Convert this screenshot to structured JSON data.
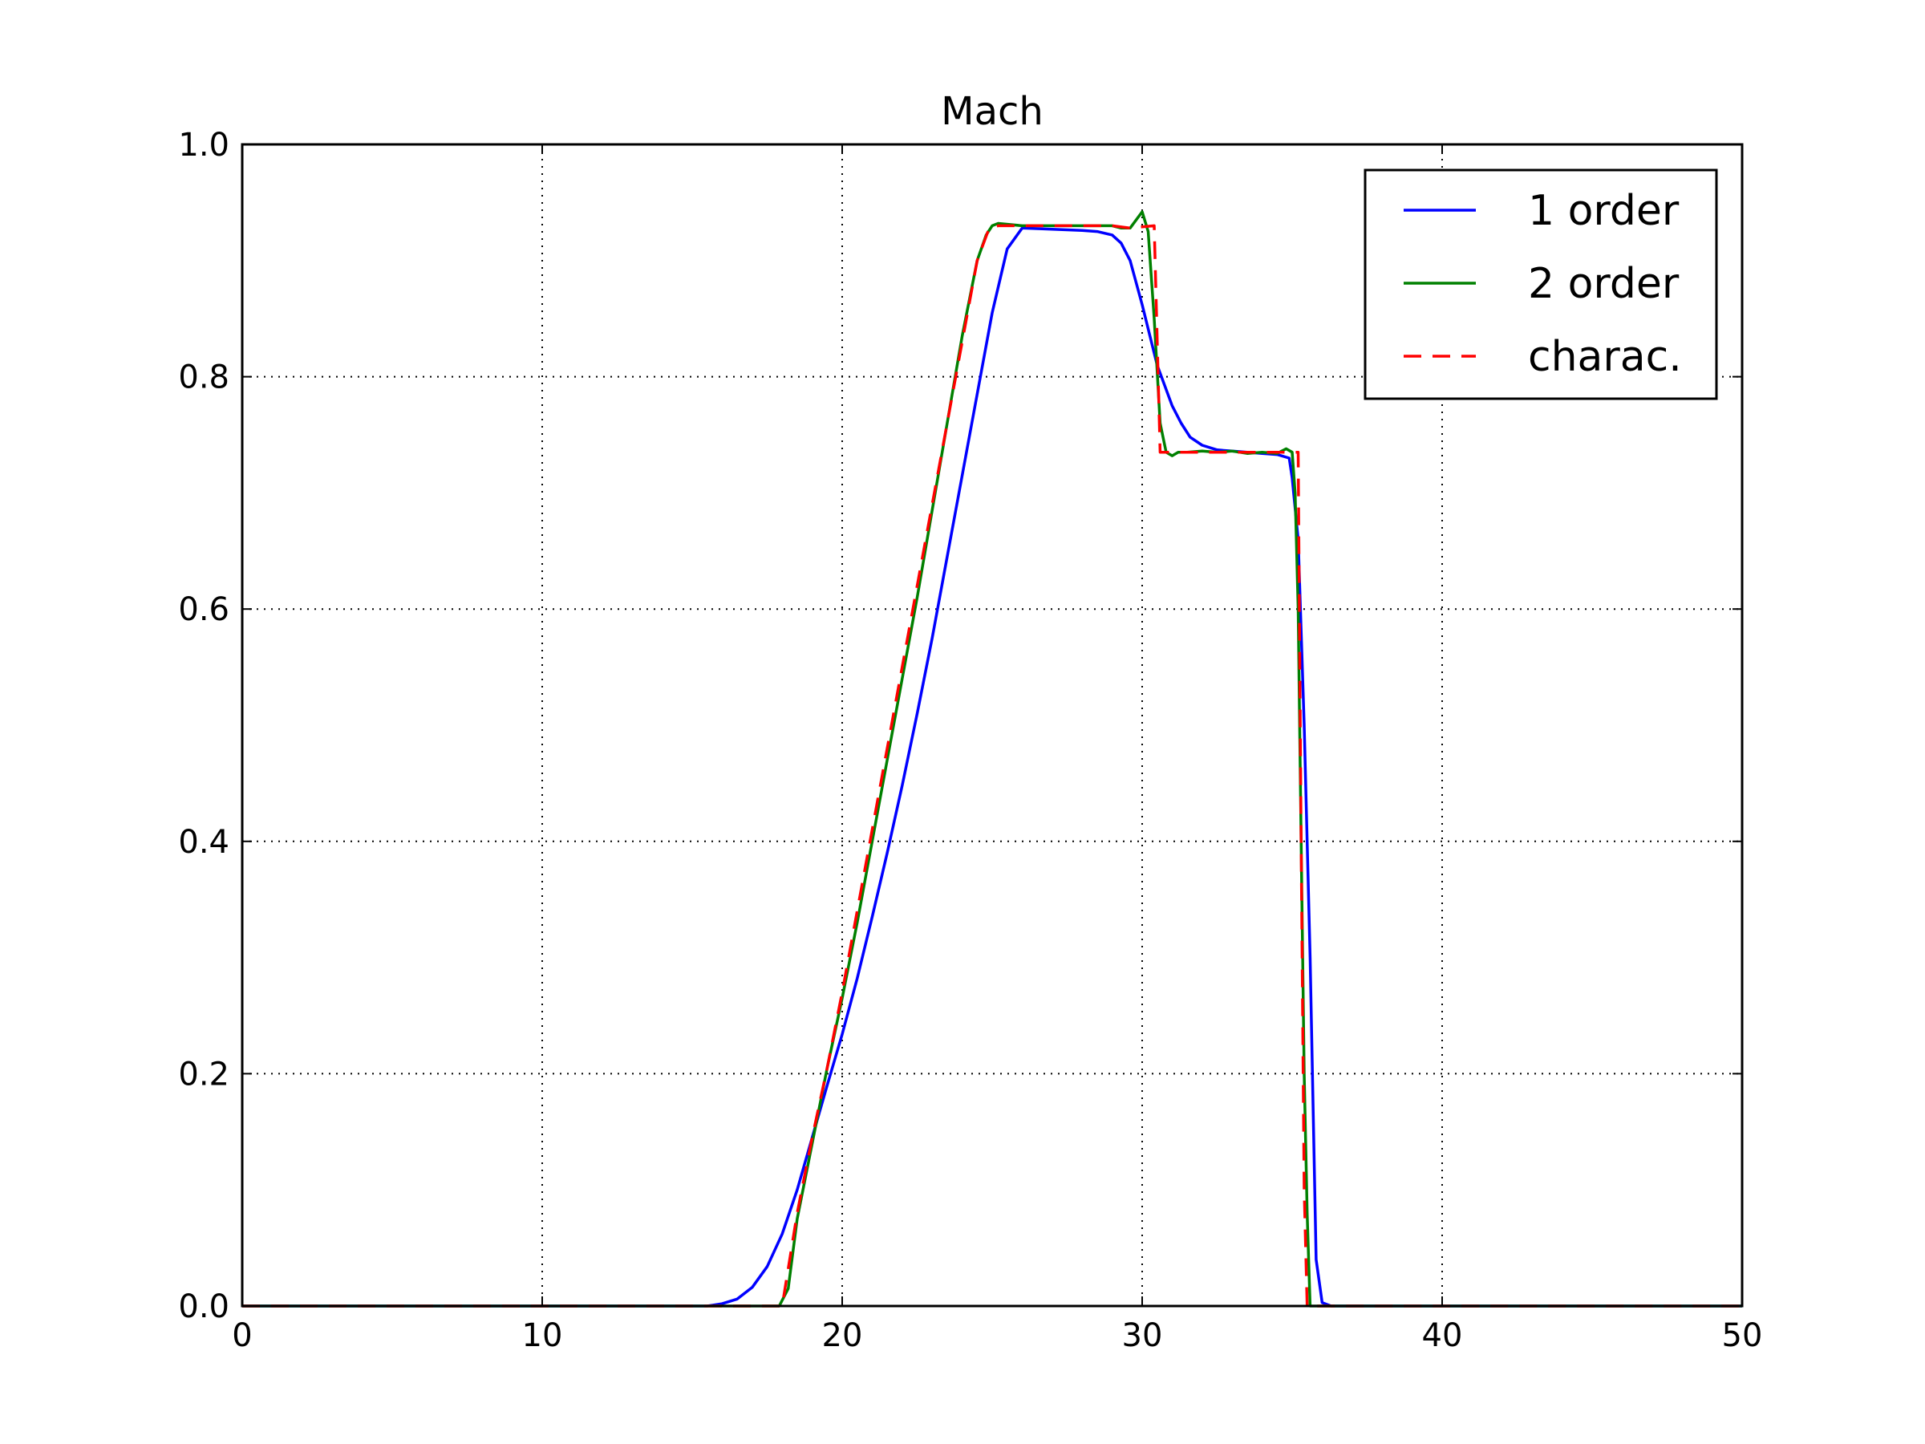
{
  "chart_data": {
    "type": "line",
    "title": "Mach",
    "xlabel": "",
    "ylabel": "",
    "xlim": [
      0,
      50
    ],
    "ylim": [
      0,
      1.0
    ],
    "x_ticks": [
      0,
      10,
      20,
      30,
      40,
      50
    ],
    "x_tick_labels": [
      "0",
      "10",
      "20",
      "30",
      "40",
      "50"
    ],
    "y_ticks": [
      0.0,
      0.2,
      0.4,
      0.6,
      0.8,
      1.0
    ],
    "y_tick_labels": [
      "0.0",
      "0.2",
      "0.4",
      "0.6",
      "0.8",
      "1.0"
    ],
    "grid": true,
    "legend_position": "top-right",
    "series": [
      {
        "name": "1 order",
        "color": "#0000ff",
        "style": "solid",
        "x": [
          0,
          15.5,
          16.0,
          16.5,
          17.0,
          17.5,
          18.0,
          18.5,
          19.0,
          19.5,
          20.0,
          20.5,
          21.0,
          21.5,
          22.0,
          22.5,
          23.0,
          23.5,
          24.0,
          24.5,
          25.0,
          25.5,
          26.0,
          27.0,
          28.0,
          28.5,
          29.0,
          29.3,
          29.6,
          30.0,
          30.5,
          31.0,
          31.3,
          31.6,
          32.0,
          32.5,
          33.0,
          33.5,
          34.0,
          34.5,
          34.9,
          35.0,
          35.2,
          35.4,
          35.6,
          35.8,
          36.0,
          36.3,
          50
        ],
        "y": [
          0,
          0,
          0.002,
          0.006,
          0.016,
          0.034,
          0.062,
          0.1,
          0.145,
          0.19,
          0.234,
          0.282,
          0.335,
          0.39,
          0.448,
          0.51,
          0.575,
          0.645,
          0.715,
          0.785,
          0.855,
          0.91,
          0.928,
          0.927,
          0.926,
          0.925,
          0.922,
          0.915,
          0.9,
          0.862,
          0.81,
          0.775,
          0.76,
          0.748,
          0.741,
          0.737,
          0.736,
          0.735,
          0.734,
          0.733,
          0.73,
          0.713,
          0.66,
          0.5,
          0.3,
          0.04,
          0.003,
          0,
          0
        ]
      },
      {
        "name": "2 order",
        "color": "#008000",
        "style": "solid",
        "x": [
          0,
          17.9,
          18.2,
          18.5,
          19.0,
          19.5,
          20.0,
          20.5,
          21.0,
          21.5,
          22.0,
          22.5,
          23.0,
          23.5,
          24.0,
          24.5,
          24.8,
          25.0,
          25.2,
          26.0,
          27.0,
          28.0,
          29.0,
          29.3,
          29.6,
          30.0,
          30.2,
          30.4,
          30.6,
          30.8,
          31.0,
          31.2,
          31.5,
          32.0,
          32.5,
          33.0,
          33.5,
          34.0,
          34.5,
          34.8,
          35.0,
          35.1,
          35.2,
          35.3,
          35.4,
          35.5,
          35.6,
          50
        ],
        "y": [
          0,
          0,
          0.015,
          0.075,
          0.14,
          0.205,
          0.265,
          0.33,
          0.4,
          0.47,
          0.54,
          0.61,
          0.685,
          0.76,
          0.835,
          0.9,
          0.922,
          0.93,
          0.932,
          0.93,
          0.93,
          0.93,
          0.93,
          0.928,
          0.928,
          0.942,
          0.925,
          0.85,
          0.76,
          0.735,
          0.732,
          0.735,
          0.735,
          0.736,
          0.735,
          0.736,
          0.734,
          0.735,
          0.734,
          0.738,
          0.735,
          0.7,
          0.6,
          0.4,
          0.2,
          0.08,
          0,
          0
        ]
      },
      {
        "name": "charac.",
        "color": "#ff0000",
        "style": "dashed",
        "x": [
          0,
          18.0,
          18.5,
          19.0,
          19.5,
          20.0,
          20.5,
          21.0,
          21.5,
          22.0,
          22.5,
          23.0,
          23.5,
          24.0,
          24.5,
          24.9,
          25.2,
          26.0,
          27.0,
          28.0,
          29.0,
          29.6,
          30.0,
          30.4,
          30.6,
          31.0,
          32.0,
          33.0,
          34.0,
          35.0,
          35.2,
          35.3,
          35.4,
          35.5,
          50
        ],
        "y": [
          0,
          0,
          0.08,
          0.145,
          0.205,
          0.27,
          0.34,
          0.41,
          0.48,
          0.55,
          0.62,
          0.69,
          0.76,
          0.83,
          0.9,
          0.928,
          0.93,
          0.93,
          0.93,
          0.93,
          0.93,
          0.928,
          0.929,
          0.93,
          0.735,
          0.735,
          0.735,
          0.735,
          0.735,
          0.735,
          0.735,
          0.4,
          0.1,
          0,
          0
        ]
      }
    ]
  }
}
